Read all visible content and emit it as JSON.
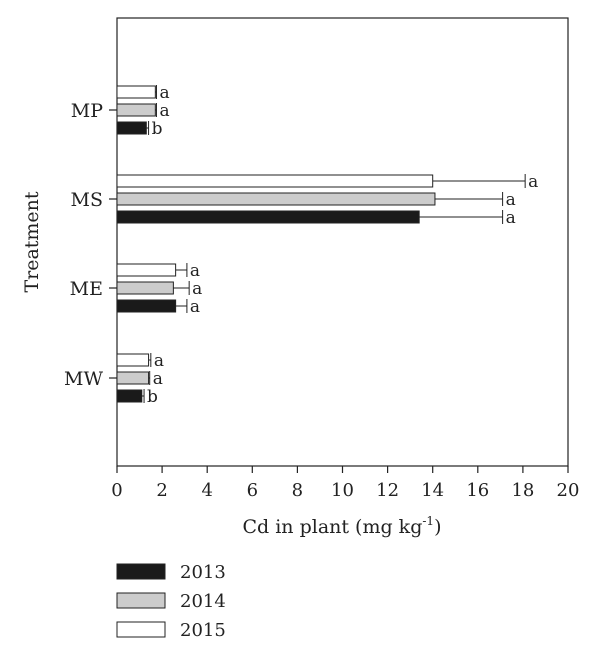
{
  "chart_data": {
    "type": "bar",
    "orientation": "horizontal",
    "xlabel": "Cd in plant (mg kg",
    "xlabel_superscript": "-1",
    "xlabel_suffix": ")",
    "ylabel": "Treatment",
    "xlim": [
      0,
      20
    ],
    "xticks": [
      0,
      2,
      4,
      6,
      8,
      10,
      12,
      14,
      16,
      18,
      20
    ],
    "categories": [
      "MP",
      "MS",
      "ME",
      "MW"
    ],
    "series": [
      {
        "name": "2015",
        "color": "#ffffff",
        "values": [
          1.7,
          14.0,
          2.6,
          1.4
        ],
        "errors": [
          0.05,
          4.1,
          0.5,
          0.1
        ],
        "letters": [
          "a",
          "a",
          "a",
          "a"
        ]
      },
      {
        "name": "2014",
        "color": "#cccccc",
        "values": [
          1.7,
          14.1,
          2.5,
          1.4
        ],
        "errors": [
          0.05,
          3.0,
          0.7,
          0.05
        ],
        "letters": [
          "a",
          "a",
          "a",
          "a"
        ]
      },
      {
        "name": "2013",
        "color": "#1a1a1a",
        "values": [
          1.3,
          13.4,
          2.6,
          1.1
        ],
        "errors": [
          0.1,
          3.7,
          0.5,
          0.1
        ],
        "letters": [
          "b",
          "a",
          "a",
          "b"
        ]
      }
    ],
    "legend": {
      "placement": "bottom-left",
      "items": [
        {
          "label": "2013",
          "color": "#1a1a1a"
        },
        {
          "label": "2014",
          "color": "#cccccc"
        },
        {
          "label": "2015",
          "color": "#ffffff"
        }
      ]
    },
    "grid": false
  }
}
